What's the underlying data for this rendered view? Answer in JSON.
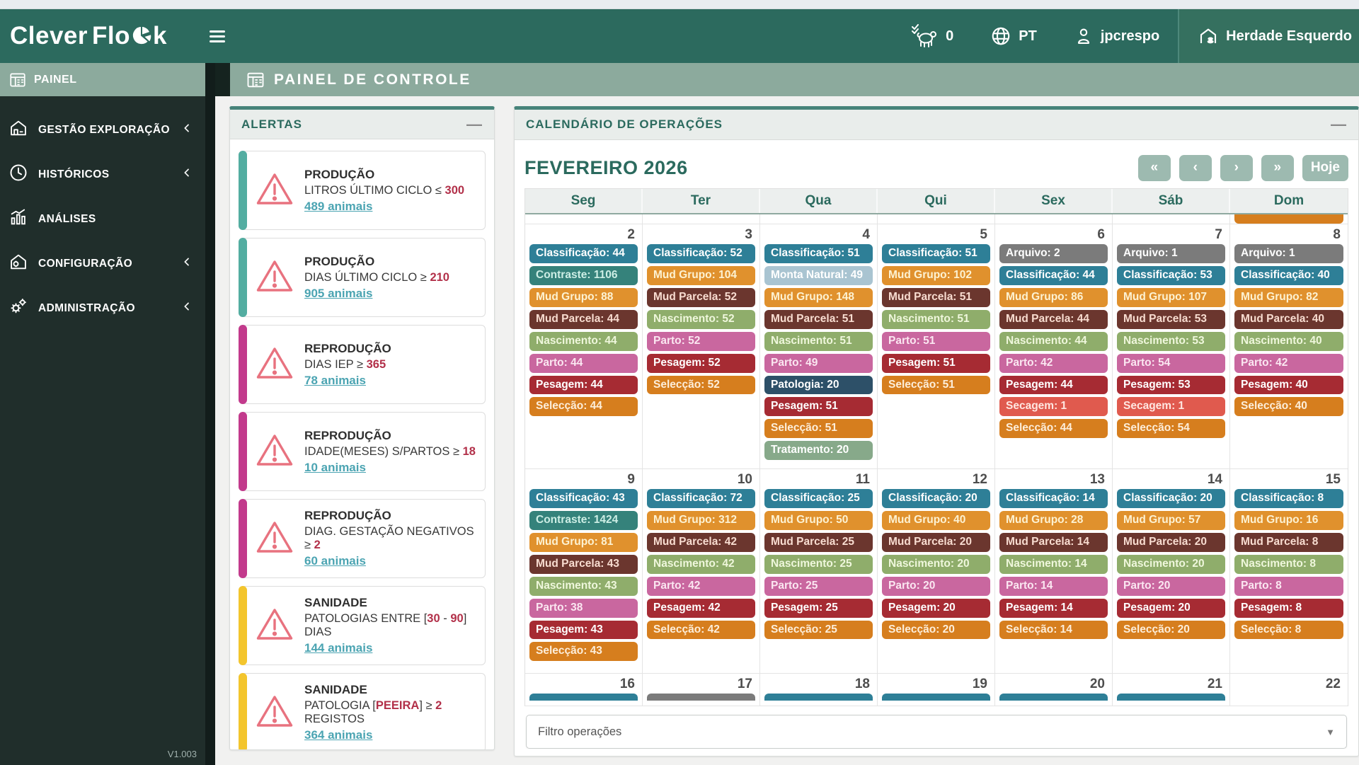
{
  "header": {
    "logo_part1": "Clever",
    "logo_part2": "Flo",
    "logo_part3": "k",
    "animal_counter": "0",
    "language": "PT",
    "user": "jpcrespo",
    "farm": "Herdade Esquerdo"
  },
  "breadcrumb": {
    "title": "PAINEL DE CONTROLE"
  },
  "sidebar": {
    "active_item": {
      "label": "PAINEL",
      "icon": "dashboard-icon"
    },
    "items": [
      {
        "label": "GESTÃO EXPLORAÇÃO",
        "icon": "farm-icon",
        "chevron": true
      },
      {
        "label": "HISTÓRICOS",
        "icon": "clock-icon",
        "chevron": true
      },
      {
        "label": "ANÁLISES",
        "icon": "chart-icon",
        "chevron": false
      },
      {
        "label": "CONFIGURAÇÃO",
        "icon": "house-gear-icon",
        "chevron": true
      },
      {
        "label": "ADMINISTRAÇÃO",
        "icon": "gears-icon",
        "chevron": true
      }
    ],
    "version": "V1.003"
  },
  "alerts": {
    "title": "ALERTAS",
    "minimize_label": "—",
    "cards": [
      {
        "accent": "#53ada1",
        "category": "PRODUÇÃO",
        "condition": [
          {
            "t": "LITROS ÚLTIMO CICLO ≤ "
          },
          {
            "t": "300",
            "red": true
          }
        ],
        "link": "489 animais"
      },
      {
        "accent": "#53ada1",
        "category": "PRODUÇÃO",
        "condition": [
          {
            "t": "DIAS ÚLTIMO CICLO ≥ "
          },
          {
            "t": "210",
            "red": true
          }
        ],
        "link": "905 animais"
      },
      {
        "accent": "#c23a8c",
        "category": "REPRODUÇÃO",
        "condition": [
          {
            "t": "DIAS IEP ≥ "
          },
          {
            "t": "365",
            "red": true
          }
        ],
        "link": "78 animais"
      },
      {
        "accent": "#c23a8c",
        "category": "REPRODUÇÃO",
        "condition": [
          {
            "t": "IDADE(MESES) S/PARTOS ≥ "
          },
          {
            "t": "18",
            "red": true
          }
        ],
        "link": "10 animais"
      },
      {
        "accent": "#c23a8c",
        "category": "REPRODUÇÃO",
        "condition": [
          {
            "t": "DIAG. GESTAÇÃO NEGATIVOS ≥ "
          },
          {
            "t": "2",
            "red": true
          }
        ],
        "link": "60 animais"
      },
      {
        "accent": "#f3c52d",
        "category": "SANIDADE",
        "condition": [
          {
            "t": "PATOLOGIAS ENTRE ["
          },
          {
            "t": "30",
            "red": true
          },
          {
            "t": " - "
          },
          {
            "t": "90",
            "red": true
          },
          {
            "t": "] DIAS"
          }
        ],
        "link": "144 animais"
      },
      {
        "accent": "#f3c52d",
        "category": "SANIDADE",
        "condition": [
          {
            "t": "PATOLOGIA ["
          },
          {
            "t": "PEEIRA",
            "red": true
          },
          {
            "t": "] ≥ "
          },
          {
            "t": "2",
            "red": true
          },
          {
            "t": " REGISTOS"
          }
        ],
        "link": "364 animais"
      }
    ]
  },
  "calendar": {
    "title": "CALENDÁRIO DE OPERAÇÕES",
    "minimize_label": "—",
    "month_title": "FEVEREIRO 2026",
    "nav_buttons": [
      {
        "label": "«",
        "name": "calendar-prev-year-button"
      },
      {
        "label": "‹",
        "name": "calendar-prev-month-button"
      },
      {
        "label": "›",
        "name": "calendar-next-month-button"
      },
      {
        "label": "»",
        "name": "calendar-next-year-button"
      },
      {
        "label": "Hoje",
        "name": "calendar-today-button"
      }
    ],
    "weekdays": [
      "Seg",
      "Ter",
      "Qua",
      "Qui",
      "Sex",
      "Sáb",
      "Dom"
    ],
    "filter_placeholder": "Filtro operações",
    "op_styles": {
      "arquivo": {
        "label": "Arquivo",
        "bg": "#7b7b7b",
        "fg": "#ffffff"
      },
      "classificacao": {
        "label": "Classificação",
        "bg": "#2e7f97",
        "fg": "#ffffff"
      },
      "contraste": {
        "label": "Contraste",
        "bg": "#35827b",
        "fg": "#cdeee5"
      },
      "monta_natural": {
        "label": "Monta Natural",
        "bg": "#a9c4d1",
        "fg": "#ffffff"
      },
      "mud_grupo": {
        "label": "Mud Grupo",
        "bg": "#e0912d",
        "fg": "#fdf2d2"
      },
      "mud_parcela": {
        "label": "Mud Parcela",
        "bg": "#6b362e",
        "fg": "#f8dcd0"
      },
      "nascimento": {
        "label": "Nascimento",
        "bg": "#8fad6b",
        "fg": "#eff7dc"
      },
      "parto": {
        "label": "Parto",
        "bg": "#c9679f",
        "fg": "#fbe7f1"
      },
      "patologia": {
        "label": "Patologia",
        "bg": "#2d5068",
        "fg": "#ffffff"
      },
      "pesagem": {
        "label": "Pesagem",
        "bg": "#a62b33",
        "fg": "#ffffff"
      },
      "secagem": {
        "label": "Secagem",
        "bg": "#e05a4e",
        "fg": "#ffe7e1"
      },
      "seleccao": {
        "label": "Selecção",
        "bg": "#d67e1e",
        "fg": "#fdeeda"
      },
      "tratamento": {
        "label": "Tratamento",
        "bg": "#87a98a",
        "fg": "#ffffff"
      }
    },
    "leading_partial_row": {
      "column_index": 6,
      "op": "seleccao"
    },
    "weeks": [
      {
        "days": [
          {
            "num": "2",
            "ops": [
              [
                "classificacao",
                "44"
              ],
              [
                "contraste",
                "1106"
              ],
              [
                "mud_grupo",
                "88"
              ],
              [
                "mud_parcela",
                "44"
              ],
              [
                "nascimento",
                "44"
              ],
              [
                "parto",
                "44"
              ],
              [
                "pesagem",
                "44"
              ],
              [
                "seleccao",
                "44"
              ]
            ]
          },
          {
            "num": "3",
            "ops": [
              [
                "classificacao",
                "52"
              ],
              [
                "mud_grupo",
                "104"
              ],
              [
                "mud_parcela",
                "52"
              ],
              [
                "nascimento",
                "52"
              ],
              [
                "parto",
                "52"
              ],
              [
                "pesagem",
                "52"
              ],
              [
                "seleccao",
                "52"
              ]
            ]
          },
          {
            "num": "4",
            "ops": [
              [
                "classificacao",
                "51"
              ],
              [
                "monta_natural",
                "49"
              ],
              [
                "mud_grupo",
                "148"
              ],
              [
                "mud_parcela",
                "51"
              ],
              [
                "nascimento",
                "51"
              ],
              [
                "parto",
                "49"
              ],
              [
                "patologia",
                "20"
              ],
              [
                "pesagem",
                "51"
              ],
              [
                "seleccao",
                "51"
              ],
              [
                "tratamento",
                "20"
              ]
            ]
          },
          {
            "num": "5",
            "ops": [
              [
                "classificacao",
                "51"
              ],
              [
                "mud_grupo",
                "102"
              ],
              [
                "mud_parcela",
                "51"
              ],
              [
                "nascimento",
                "51"
              ],
              [
                "parto",
                "51"
              ],
              [
                "pesagem",
                "51"
              ],
              [
                "seleccao",
                "51"
              ]
            ]
          },
          {
            "num": "6",
            "ops": [
              [
                "arquivo",
                "2"
              ],
              [
                "classificacao",
                "44"
              ],
              [
                "mud_grupo",
                "86"
              ],
              [
                "mud_parcela",
                "44"
              ],
              [
                "nascimento",
                "44"
              ],
              [
                "parto",
                "42"
              ],
              [
                "pesagem",
                "44"
              ],
              [
                "secagem",
                "1"
              ],
              [
                "seleccao",
                "44"
              ]
            ]
          },
          {
            "num": "7",
            "ops": [
              [
                "arquivo",
                "1"
              ],
              [
                "classificacao",
                "53"
              ],
              [
                "mud_grupo",
                "107"
              ],
              [
                "mud_parcela",
                "53"
              ],
              [
                "nascimento",
                "53"
              ],
              [
                "parto",
                "54"
              ],
              [
                "pesagem",
                "53"
              ],
              [
                "secagem",
                "1"
              ],
              [
                "seleccao",
                "54"
              ]
            ]
          },
          {
            "num": "8",
            "ops": [
              [
                "arquivo",
                "1"
              ],
              [
                "classificacao",
                "40"
              ],
              [
                "mud_grupo",
                "82"
              ],
              [
                "mud_parcela",
                "40"
              ],
              [
                "nascimento",
                "40"
              ],
              [
                "parto",
                "42"
              ],
              [
                "pesagem",
                "40"
              ],
              [
                "seleccao",
                "40"
              ]
            ]
          }
        ]
      },
      {
        "days": [
          {
            "num": "9",
            "ops": [
              [
                "classificacao",
                "43"
              ],
              [
                "contraste",
                "1424"
              ],
              [
                "mud_grupo",
                "81"
              ],
              [
                "mud_parcela",
                "43"
              ],
              [
                "nascimento",
                "43"
              ],
              [
                "parto",
                "38"
              ],
              [
                "pesagem",
                "43"
              ],
              [
                "seleccao",
                "43"
              ]
            ]
          },
          {
            "num": "10",
            "ops": [
              [
                "classificacao",
                "72"
              ],
              [
                "mud_grupo",
                "312"
              ],
              [
                "mud_parcela",
                "42"
              ],
              [
                "nascimento",
                "42"
              ],
              [
                "parto",
                "42"
              ],
              [
                "pesagem",
                "42"
              ],
              [
                "seleccao",
                "42"
              ]
            ]
          },
          {
            "num": "11",
            "ops": [
              [
                "classificacao",
                "25"
              ],
              [
                "mud_grupo",
                "50"
              ],
              [
                "mud_parcela",
                "25"
              ],
              [
                "nascimento",
                "25"
              ],
              [
                "parto",
                "25"
              ],
              [
                "pesagem",
                "25"
              ],
              [
                "seleccao",
                "25"
              ]
            ]
          },
          {
            "num": "12",
            "ops": [
              [
                "classificacao",
                "20"
              ],
              [
                "mud_grupo",
                "40"
              ],
              [
                "mud_parcela",
                "20"
              ],
              [
                "nascimento",
                "20"
              ],
              [
                "parto",
                "20"
              ],
              [
                "pesagem",
                "20"
              ],
              [
                "seleccao",
                "20"
              ]
            ]
          },
          {
            "num": "13",
            "ops": [
              [
                "classificacao",
                "14"
              ],
              [
                "mud_grupo",
                "28"
              ],
              [
                "mud_parcela",
                "14"
              ],
              [
                "nascimento",
                "14"
              ],
              [
                "parto",
                "14"
              ],
              [
                "pesagem",
                "14"
              ],
              [
                "seleccao",
                "14"
              ]
            ]
          },
          {
            "num": "14",
            "ops": [
              [
                "classificacao",
                "20"
              ],
              [
                "mud_grupo",
                "57"
              ],
              [
                "mud_parcela",
                "20"
              ],
              [
                "nascimento",
                "20"
              ],
              [
                "parto",
                "20"
              ],
              [
                "pesagem",
                "20"
              ],
              [
                "seleccao",
                "20"
              ]
            ]
          },
          {
            "num": "15",
            "ops": [
              [
                "classificacao",
                "8"
              ],
              [
                "mud_grupo",
                "16"
              ],
              [
                "mud_parcela",
                "8"
              ],
              [
                "nascimento",
                "8"
              ],
              [
                "parto",
                "8"
              ],
              [
                "pesagem",
                "8"
              ],
              [
                "seleccao",
                "8"
              ]
            ]
          }
        ]
      },
      {
        "days": [
          {
            "num": "16",
            "partial": "classificacao"
          },
          {
            "num": "17",
            "partial": "arquivo"
          },
          {
            "num": "18",
            "partial": "classificacao"
          },
          {
            "num": "19",
            "partial": "classificacao"
          },
          {
            "num": "20",
            "partial": "classificacao"
          },
          {
            "num": "21",
            "partial": "classificacao"
          },
          {
            "num": "22",
            "partial": null
          }
        ]
      }
    ]
  }
}
